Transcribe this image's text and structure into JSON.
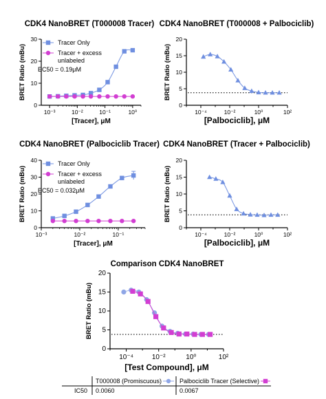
{
  "figure": {
    "comparison_table": {
      "columns": [
        "T000008 (Promiscuous)",
        "Palbociclib Tracer (Selective)"
      ],
      "row_label": "IC50",
      "values": [
        "0.0060",
        "0.0067"
      ]
    }
  },
  "chart_data": [
    {
      "type": "scatter",
      "title": "CDK4 NanoBRET (T000008 Tracer)",
      "xlabel": "[Tracer], μM",
      "ylabel": "BRET Ratio (mBu)",
      "x_scale": "log",
      "xlim": [
        0.0005,
        2
      ],
      "ylim": [
        0,
        30
      ],
      "x_ticks": [
        "10⁻³",
        "10⁻²",
        "10⁻¹",
        "10⁰"
      ],
      "y_ticks": [
        "0",
        "10",
        "20",
        "30"
      ],
      "annotation": "EC50 = 0.19μM",
      "legend": "top-left",
      "series": [
        {
          "name": "Tracer Only",
          "marker": "square",
          "color": "#6f8fe0",
          "x": [
            0.001,
            0.002,
            0.004,
            0.008,
            0.016,
            0.031,
            0.0625,
            0.125,
            0.25,
            0.5,
            1.0
          ],
          "y": [
            4.0,
            4.1,
            4.3,
            4.5,
            4.7,
            5.5,
            7.0,
            10.5,
            17.5,
            24.5,
            25.0
          ]
        },
        {
          "name": "Tracer + excess unlabeled",
          "marker": "circle",
          "color": "#d23ed2",
          "x": [
            0.001,
            0.002,
            0.004,
            0.008,
            0.016,
            0.031,
            0.0625,
            0.125,
            0.25,
            0.5,
            1.0
          ],
          "y": [
            4.0,
            4.0,
            4.0,
            4.0,
            4.0,
            4.0,
            4.0,
            4.0,
            4.0,
            4.0,
            4.0
          ]
        }
      ]
    },
    {
      "type": "scatter",
      "title": "CDK4 NanoBRET (T000008 + Palbociclib)",
      "xlabel": "[Palbociclib], μM",
      "ylabel": "BRET Ratio (mBu)",
      "x_scale": "log",
      "xlim": [
        1e-05,
        100
      ],
      "ylim": [
        0,
        20
      ],
      "x_ticks": [
        "10⁻⁴",
        "10⁻²",
        "10⁰",
        "10²"
      ],
      "y_ticks": [
        "0",
        "5",
        "10",
        "15",
        "20"
      ],
      "baseline": 3.8,
      "series": [
        {
          "marker": "triangle",
          "color": "#6f8fe0",
          "x": [
            0.00015,
            0.00045,
            0.0014,
            0.004,
            0.012,
            0.037,
            0.11,
            0.33,
            1.0,
            3.0,
            9.0,
            27.0
          ],
          "y": [
            14.7,
            15.4,
            14.8,
            13.2,
            10.8,
            7.5,
            5.2,
            4.3,
            3.9,
            3.8,
            3.8,
            3.8
          ]
        }
      ]
    },
    {
      "type": "scatter",
      "title": "CDK4 NanoBRET (Palbociclib Tracer)",
      "xlabel": "[Tracer], μM",
      "ylabel": "BRET Ratio (mBu)",
      "x_scale": "log",
      "xlim": [
        0.001,
        0.5
      ],
      "ylim": [
        0,
        40
      ],
      "x_ticks": [
        "10⁻³",
        "10⁻²",
        "10⁻¹"
      ],
      "y_ticks": [
        "0",
        "10",
        "20",
        "30",
        "40"
      ],
      "annotation": "EC50 = 0.032μM",
      "legend": "top-left",
      "series": [
        {
          "name": "Tracer Only",
          "marker": "square",
          "color": "#6f8fe0",
          "x": [
            0.002,
            0.004,
            0.008,
            0.016,
            0.031,
            0.0625,
            0.125,
            0.25
          ],
          "y": [
            5.5,
            7.0,
            9.5,
            13.5,
            18.5,
            24.5,
            29.5,
            31.0
          ]
        },
        {
          "name": "Tracer + excess unlabeled",
          "marker": "circle",
          "color": "#d23ed2",
          "x": [
            0.002,
            0.004,
            0.008,
            0.016,
            0.031,
            0.0625,
            0.125,
            0.25
          ],
          "y": [
            4.0,
            4.0,
            4.0,
            4.0,
            4.0,
            4.0,
            4.0,
            4.0
          ]
        }
      ]
    },
    {
      "type": "scatter",
      "title": "CDK4 NanoBRET (Tracer + Palbociclib)",
      "xlabel": "[Palbociclib], μM",
      "ylabel": "BRET Ratio (mBu)",
      "x_scale": "log",
      "xlim": [
        1e-05,
        100
      ],
      "ylim": [
        0,
        20
      ],
      "x_ticks": [
        "10⁻⁴",
        "10⁻²",
        "10⁰",
        "10²"
      ],
      "y_ticks": [
        "0",
        "5",
        "10",
        "15",
        "20"
      ],
      "baseline": 3.8,
      "series": [
        {
          "marker": "triangle",
          "color": "#6f8fe0",
          "x": [
            0.0004,
            0.0011,
            0.0033,
            0.01,
            0.03,
            0.09,
            0.27,
            0.8,
            2.4,
            7.2,
            21.0
          ],
          "y": [
            15.0,
            14.5,
            13.5,
            9.5,
            5.5,
            4.2,
            3.9,
            3.8,
            3.7,
            3.8,
            3.8
          ]
        }
      ]
    },
    {
      "type": "scatter",
      "title": "Comparison CDK4 NanoBRET",
      "xlabel": "[Test Compound], μM",
      "ylabel": "BRET Ratio (mBu)",
      "x_scale": "log",
      "xlim": [
        1e-05,
        100
      ],
      "ylim": [
        0,
        20
      ],
      "x_ticks": [
        "10⁻⁴",
        "10⁻²",
        "10⁰",
        "10²"
      ],
      "y_ticks": [
        "0",
        "5",
        "10",
        "15",
        "20"
      ],
      "baseline": 3.8,
      "series": [
        {
          "name": "T000008 (Promiscuous)",
          "marker": "circle",
          "color": "#8fa6e6",
          "x": [
            7e-05,
            0.0002,
            0.0006,
            0.0018,
            0.0055,
            0.016,
            0.05,
            0.15,
            0.45,
            1.35,
            4.0,
            12.0
          ],
          "y": [
            15.0,
            15.5,
            15.0,
            13.0,
            9.5,
            6.0,
            4.6,
            4.1,
            3.9,
            3.9,
            3.8,
            3.8
          ]
        },
        {
          "name": "Palbociclib Tracer (Selective)",
          "marker": "square",
          "color": "#d23ed2",
          "x": [
            0.00025,
            0.00075,
            0.0022,
            0.0067,
            0.02,
            0.06,
            0.18,
            0.55,
            1.65,
            5.0,
            15.0
          ],
          "y": [
            15.2,
            14.5,
            12.5,
            8.5,
            5.5,
            4.3,
            3.9,
            3.9,
            3.8,
            3.8,
            3.8
          ]
        }
      ]
    }
  ]
}
